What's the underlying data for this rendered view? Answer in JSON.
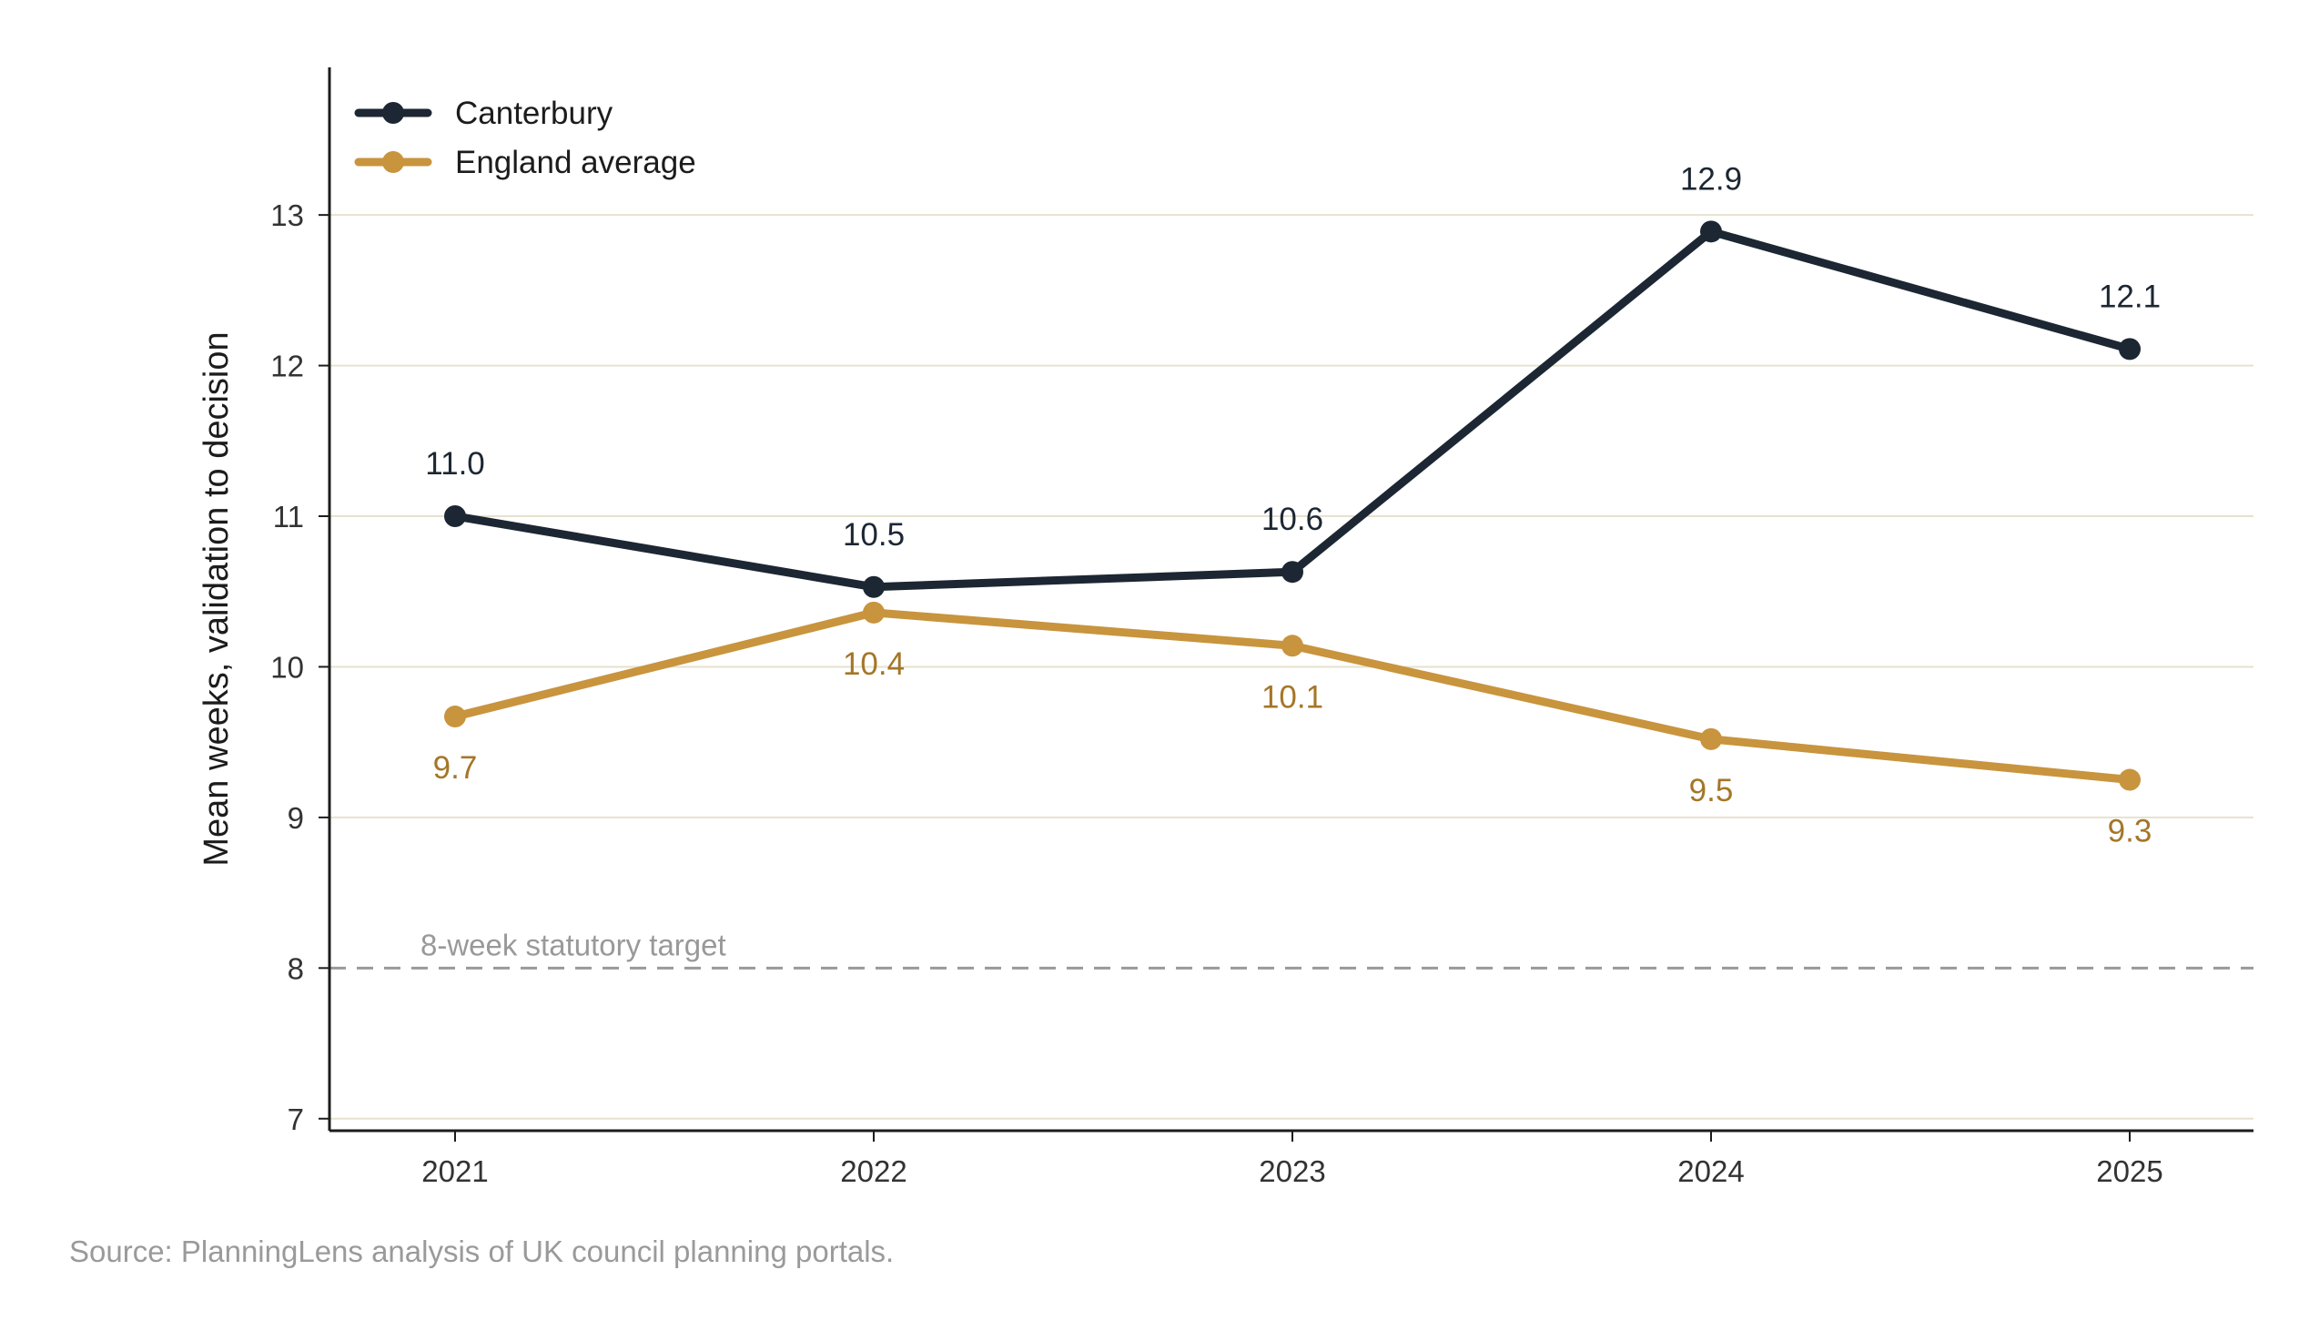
{
  "chart_data": {
    "type": "line",
    "categories": [
      "2021",
      "2022",
      "2023",
      "2024",
      "2025"
    ],
    "series": [
      {
        "name": "Canterbury",
        "values": [
          11.0,
          10.53,
          10.63,
          12.89,
          12.11
        ],
        "labels": [
          "11.0",
          "10.5",
          "10.6",
          "12.9",
          "12.1"
        ],
        "color": "#1c2733",
        "label_color": "#1c2733",
        "label_position": "above"
      },
      {
        "name": "England average",
        "values": [
          9.67,
          10.36,
          10.14,
          9.52,
          9.25
        ],
        "labels": [
          "9.7",
          "10.4",
          "10.1",
          "9.5",
          "9.3"
        ],
        "color": "#c8943e",
        "label_color": "#a57628",
        "label_position": "below"
      }
    ],
    "ylabel": "Mean weeks, validation to decision",
    "xlabel": "",
    "ylim": [
      6.92,
      13.98
    ],
    "yticks": [
      "7",
      "8",
      "9",
      "10",
      "11",
      "12",
      "13"
    ],
    "grid": "horizontal",
    "legend_placement": "top-left",
    "reference_line": {
      "value": 8,
      "label": "8-week statutory target",
      "color": "#999999"
    }
  },
  "source": "Source: PlanningLens analysis of UK council planning portals."
}
